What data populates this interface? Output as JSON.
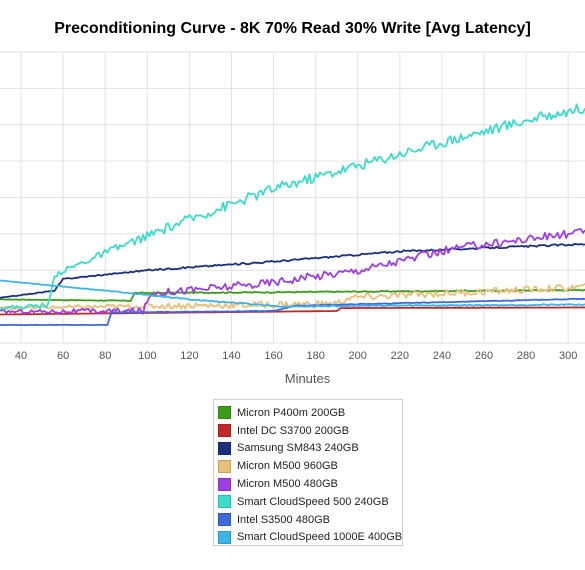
{
  "chart_data": {
    "type": "line",
    "title": "Preconditioning Curve - 8K 70% Read 30% Write [Avg Latency]",
    "xlabel": "Minutes",
    "ylabel": "",
    "xlim": [
      30,
      308
    ],
    "ylim": [
      0,
      10
    ],
    "x_ticks": [
      40,
      60,
      80,
      100,
      120,
      140,
      160,
      180,
      200,
      220,
      240,
      260,
      280,
      300
    ],
    "grid": true,
    "legend_position": "bottom-center",
    "series": [
      {
        "name": "Micron P400m 200GB",
        "color": "#3f9a1c",
        "noise": 0.02,
        "points": [
          [
            30,
            1.5
          ],
          [
            92,
            1.45
          ],
          [
            94,
            1.72
          ],
          [
            150,
            1.74
          ],
          [
            308,
            1.82
          ]
        ]
      },
      {
        "name": "Intel DC S3700 200GB",
        "color": "#c0282a",
        "noise": 0.0,
        "points": [
          [
            30,
            0.98
          ],
          [
            190,
            1.1
          ],
          [
            192,
            1.2
          ],
          [
            308,
            1.22
          ]
        ]
      },
      {
        "name": "Samsung SM843 240GB",
        "color": "#1c2f7c",
        "noise": 0.03,
        "points": [
          [
            30,
            1.55
          ],
          [
            56,
            1.8
          ],
          [
            60,
            2.2
          ],
          [
            100,
            2.5
          ],
          [
            160,
            2.8
          ],
          [
            220,
            3.15
          ],
          [
            308,
            3.4
          ]
        ]
      },
      {
        "name": "Micron M500 960GB",
        "color": "#e8c07a",
        "noise": 0.12,
        "points": [
          [
            30,
            1.2
          ],
          [
            190,
            1.35
          ],
          [
            196,
            1.55
          ],
          [
            240,
            1.7
          ],
          [
            308,
            1.92
          ]
        ]
      },
      {
        "name": "Micron M500 480GB",
        "color": "#9b3fe0",
        "noise": 0.14,
        "points": [
          [
            30,
            1.08
          ],
          [
            98,
            1.1
          ],
          [
            102,
            1.72
          ],
          [
            150,
            2.0
          ],
          [
            200,
            2.5
          ],
          [
            250,
            3.3
          ],
          [
            308,
            3.82
          ]
        ]
      },
      {
        "name": "Smart CloudSpeed 500 240GB",
        "color": "#3ddcc8",
        "noise": 0.18,
        "points": [
          [
            30,
            1.2
          ],
          [
            53,
            1.3
          ],
          [
            56,
            2.35
          ],
          [
            80,
            3.1
          ],
          [
            120,
            4.25
          ],
          [
            160,
            5.3
          ],
          [
            200,
            6.1
          ],
          [
            240,
            6.9
          ],
          [
            280,
            7.65
          ],
          [
            308,
            8.1
          ]
        ]
      },
      {
        "name": "Intel S3500 480GB",
        "color": "#3e6ad9",
        "noise": 0.01,
        "points": [
          [
            30,
            0.62
          ],
          [
            81,
            0.62
          ],
          [
            83,
            1.05
          ],
          [
            160,
            1.1
          ],
          [
            170,
            1.28
          ],
          [
            308,
            1.52
          ]
        ]
      },
      {
        "name": "Smart CloudSpeed 1000E 400GB",
        "color": "#3eb3e6",
        "noise": 0.02,
        "points": [
          [
            30,
            2.15
          ],
          [
            80,
            1.8
          ],
          [
            120,
            1.5
          ],
          [
            165,
            1.25
          ],
          [
            200,
            1.28
          ],
          [
            308,
            1.32
          ]
        ]
      }
    ]
  }
}
